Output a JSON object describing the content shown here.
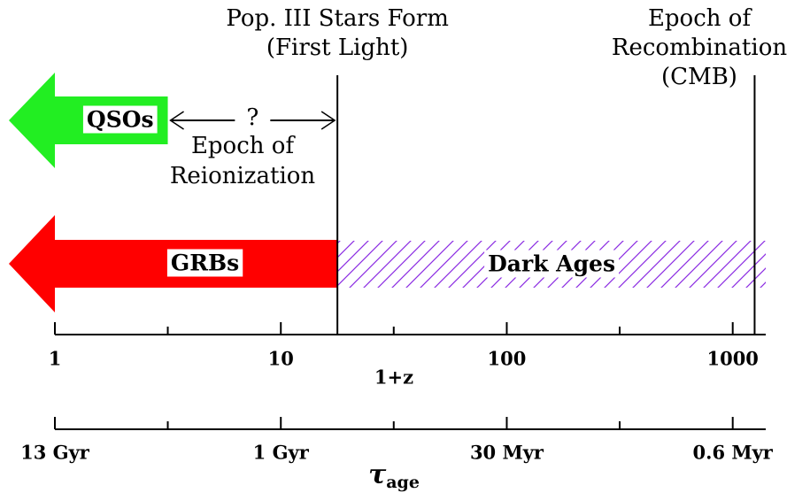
{
  "diagram": {
    "axis": {
      "label": "1+z",
      "log": true,
      "xlim": [
        1,
        1400
      ],
      "xticks": [
        1,
        10,
        100,
        1000
      ],
      "minor_ticks": [
        3.16,
        31.6,
        316
      ]
    },
    "age_axis": {
      "symbol": "τ",
      "sub": "age",
      "ticks": [
        {
          "value": 1,
          "label": "13 Gyr"
        },
        {
          "value": 10,
          "label": "1 Gyr"
        },
        {
          "value": 100,
          "label": "30 Myr"
        },
        {
          "value": 1000,
          "label": "0.6 Myr"
        }
      ],
      "minor_ticks": [
        3.16,
        31.6,
        316
      ]
    },
    "pop3": {
      "lines": [
        "Pop. III Stars Form",
        "(First Light)"
      ],
      "value": 17.8
    },
    "recombination": {
      "lines": [
        "Epoch of",
        "Recombination",
        "(CMB)"
      ],
      "value": 1250
    },
    "reionization": {
      "mark": "?",
      "lines": [
        "Epoch of",
        "Reionization"
      ]
    },
    "qsos": {
      "label": "QSOs",
      "color": "#22ee22",
      "until": 3.16
    },
    "grbs": {
      "label": "GRBs",
      "color": "#ff0000",
      "until": 17.8
    },
    "dark_ages": {
      "label": "Dark Ages",
      "color": "#8a2be2"
    }
  }
}
